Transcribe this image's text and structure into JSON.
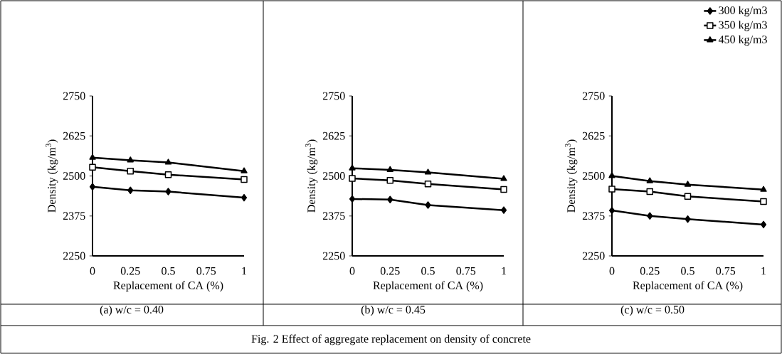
{
  "chart_data": [
    {
      "type": "line",
      "title": "(a) w/c = 0.40",
      "xlabel": "Replacement of CA (%)",
      "ylabel": "Density (kg/m$^{3}$)",
      "annotations": [
        "Fig. 2 Effect of aggregate replacement on density of concrete"
      ],
      "x": [
        0,
        0.25,
        0.5,
        1
      ],
      "xlim": [
        0,
        1
      ],
      "xticks": [
        0,
        0.25,
        0.5,
        0.75,
        1
      ],
      "ylim": [
        2250,
        2750
      ],
      "yticks": [
        2250,
        2375,
        2500,
        2625,
        2750
      ],
      "legend": false,
      "line_style": "solid",
      "series": [
        {
          "color": "#000000",
          "marker": "diamond",
          "values": [
            2466,
            2455,
            2451,
            2432
          ]
        },
        {
          "color": "#000000",
          "marker": "square",
          "values": [
            2527,
            2515,
            2504,
            2489
          ]
        },
        {
          "color": "#000000",
          "marker": "triangle",
          "values": [
            2557,
            2549,
            2542,
            2515
          ]
        }
      ]
    },
    {
      "type": "line",
      "title": "(b) w/c = 0.45",
      "xlabel": "Replacement of CA (%)",
      "ylabel": "Density (kg/m$^{3}$)",
      "x": [
        0,
        0.25,
        0.5,
        1
      ],
      "xlim": [
        0,
        1
      ],
      "xticks": [
        0,
        0.25,
        0.5,
        0.75,
        1
      ],
      "ylim": [
        2250,
        2750
      ],
      "yticks": [
        2250,
        2375,
        2500,
        2625,
        2750
      ],
      "legend": false,
      "line_style": "solid",
      "series": [
        {
          "color": "#000000",
          "marker": "diamond",
          "values": [
            2428,
            2426,
            2409,
            2393
          ]
        },
        {
          "color": "#000000",
          "marker": "square",
          "values": [
            2492,
            2486,
            2475,
            2458
          ]
        },
        {
          "color": "#000000",
          "marker": "triangle",
          "values": [
            2524,
            2519,
            2511,
            2491
          ]
        }
      ]
    },
    {
      "type": "line",
      "title": "(c) w/c = 0.50",
      "xlabel": "Replacement of CA (%)",
      "ylabel": "Density (kg/m$^{3}$)",
      "x": [
        0,
        0.25,
        0.5,
        1
      ],
      "xlim": [
        0,
        1
      ],
      "xticks": [
        0,
        0.25,
        0.5,
        0.75,
        1
      ],
      "ylim": [
        2250,
        2750
      ],
      "yticks": [
        2250,
        2375,
        2500,
        2625,
        2750
      ],
      "legend": "top right",
      "line_style": "solid",
      "series": [
        {
          "name": "300 kg/m3",
          "color": "#000000",
          "marker": "diamond",
          "values": [
            2392,
            2375,
            2365,
            2348
          ]
        },
        {
          "name": "350 kg/m3",
          "color": "#000000",
          "marker": "square",
          "values": [
            2459,
            2451,
            2436,
            2420
          ]
        },
        {
          "name": "450 kg/m3",
          "color": "#000000",
          "marker": "triangle",
          "values": [
            2500,
            2484,
            2473,
            2457
          ]
        }
      ]
    }
  ]
}
